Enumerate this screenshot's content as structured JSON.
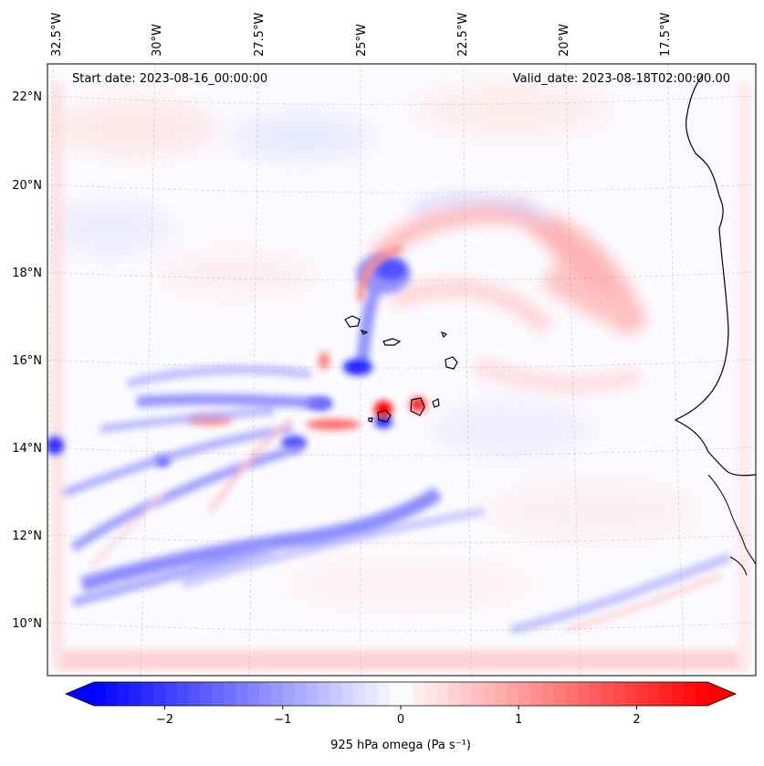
{
  "map": {
    "start_date_label": "Start date: 2023-08-16_00:00:00",
    "valid_date_label": "Valid_date: 2023-08-18T02:00:00.00",
    "lon_labels": [
      "32.5°W",
      "30°W",
      "27.5°W",
      "25°W",
      "22.5°W",
      "20°W",
      "17.5°W"
    ],
    "lat_labels": [
      "22°N",
      "20°N",
      "18°N",
      "16°N",
      "14°N",
      "12°N",
      "10°N"
    ],
    "field": "925 hPa omega",
    "extent": {
      "lon_min": -33,
      "lon_max": -15.6,
      "lat_min": 8.9,
      "lat_max": 22.8
    }
  },
  "colorbar": {
    "label": "925 hPa omega (Pa s⁻¹)",
    "ticks": [
      "−2",
      "−1",
      "0",
      "1",
      "2"
    ],
    "tick_values": [
      -2,
      -1,
      0,
      1,
      2
    ],
    "vmin": -2.6,
    "vmax": 2.6,
    "low_color": "#0000ff",
    "high_color": "#ff0000",
    "mid_color": "#ffffff"
  }
}
